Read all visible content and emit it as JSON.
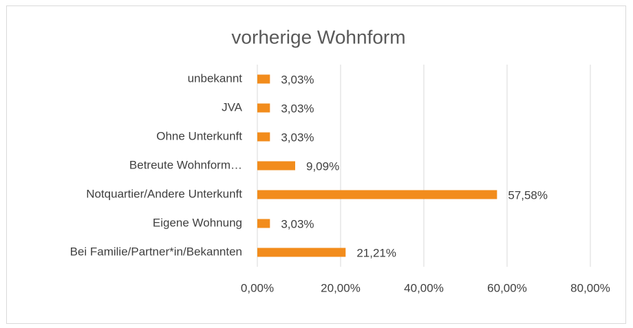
{
  "chart_data": {
    "type": "bar",
    "orientation": "horizontal",
    "title": "vorherige Wohnform",
    "categories": [
      "unbekannt",
      "JVA",
      "Ohne Unterkunft",
      "Betreute Wohnform…",
      "Notquartier/Andere Unterkunft",
      "Eigene Wohnung",
      "Bei Familie/Partner*in/Bekannten"
    ],
    "values": [
      3.03,
      3.03,
      3.03,
      9.09,
      57.58,
      3.03,
      21.21
    ],
    "value_labels": [
      "3,03%",
      "3,03%",
      "3,03%",
      "9,09%",
      "57,58%",
      "3,03%",
      "21,21%"
    ],
    "color": "#f28c1c",
    "xlim": [
      0,
      80
    ],
    "xticks": [
      {
        "value": 0,
        "label": "0,00%"
      },
      {
        "value": 20,
        "label": "20,00%"
      },
      {
        "value": 40,
        "label": "40,00%"
      },
      {
        "value": 60,
        "label": "60,00%"
      },
      {
        "value": 80,
        "label": "80,00%"
      }
    ],
    "grid": true
  }
}
